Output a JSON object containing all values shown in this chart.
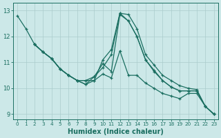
{
  "xlabel": "Humidex (Indice chaleur)",
  "bg_color": "#cce8e8",
  "grid_color": "#aacccc",
  "line_color": "#1a6e60",
  "xlim": [
    -0.5,
    23.5
  ],
  "ylim": [
    8.8,
    13.3
  ],
  "yticks": [
    9,
    10,
    11,
    12,
    13
  ],
  "xticks": [
    0,
    1,
    2,
    3,
    4,
    5,
    6,
    7,
    8,
    9,
    10,
    11,
    12,
    13,
    14,
    15,
    16,
    17,
    18,
    19,
    20,
    21,
    22,
    23
  ],
  "series": [
    {
      "x": [
        0,
        1,
        2,
        3,
        4,
        5,
        6,
        7,
        8,
        9,
        10,
        11,
        12,
        13,
        14,
        15,
        16,
        17,
        18,
        19,
        20,
        21,
        22,
        23
      ],
      "y": [
        12.8,
        12.3,
        11.7,
        11.4,
        11.15,
        10.75,
        10.5,
        10.3,
        10.15,
        10.3,
        11.1,
        11.5,
        12.9,
        12.85,
        12.3,
        11.3,
        10.9,
        10.5,
        10.3,
        10.1,
        10.0,
        9.95,
        9.3,
        9.0
      ]
    },
    {
      "x": [
        2,
        3,
        4,
        5,
        6,
        7,
        8,
        9,
        10,
        11,
        12,
        13,
        14,
        15,
        16,
        17,
        18,
        19,
        20,
        21,
        22,
        23
      ],
      "y": [
        11.7,
        11.4,
        11.15,
        10.75,
        10.5,
        10.3,
        10.15,
        10.45,
        10.95,
        10.65,
        12.85,
        12.6,
        12.0,
        11.1,
        10.7,
        10.3,
        10.05,
        9.9,
        9.9,
        9.9,
        9.3,
        9.0
      ]
    },
    {
      "x": [
        2,
        3,
        4,
        5,
        6,
        7,
        8,
        9,
        10,
        11,
        12,
        13,
        14,
        15,
        16,
        17,
        18,
        19,
        20,
        21,
        22,
        23
      ],
      "y": [
        11.7,
        11.4,
        11.15,
        10.75,
        10.5,
        10.3,
        10.3,
        10.3,
        10.55,
        10.4,
        11.45,
        10.5,
        10.5,
        10.2,
        10.0,
        9.8,
        9.7,
        9.6,
        9.8,
        9.8,
        9.3,
        9.0
      ]
    },
    {
      "x": [
        2,
        3,
        4,
        5,
        6,
        7,
        8,
        9,
        10,
        11,
        12,
        13,
        14,
        15,
        16,
        17,
        18,
        19,
        20,
        21,
        22,
        23
      ],
      "y": [
        11.7,
        11.4,
        11.15,
        10.75,
        10.5,
        10.3,
        10.3,
        10.45,
        10.8,
        11.3,
        12.9,
        12.6,
        12.0,
        11.1,
        10.65,
        10.3,
        10.05,
        9.9,
        9.9,
        9.9,
        9.3,
        9.0
      ]
    }
  ]
}
